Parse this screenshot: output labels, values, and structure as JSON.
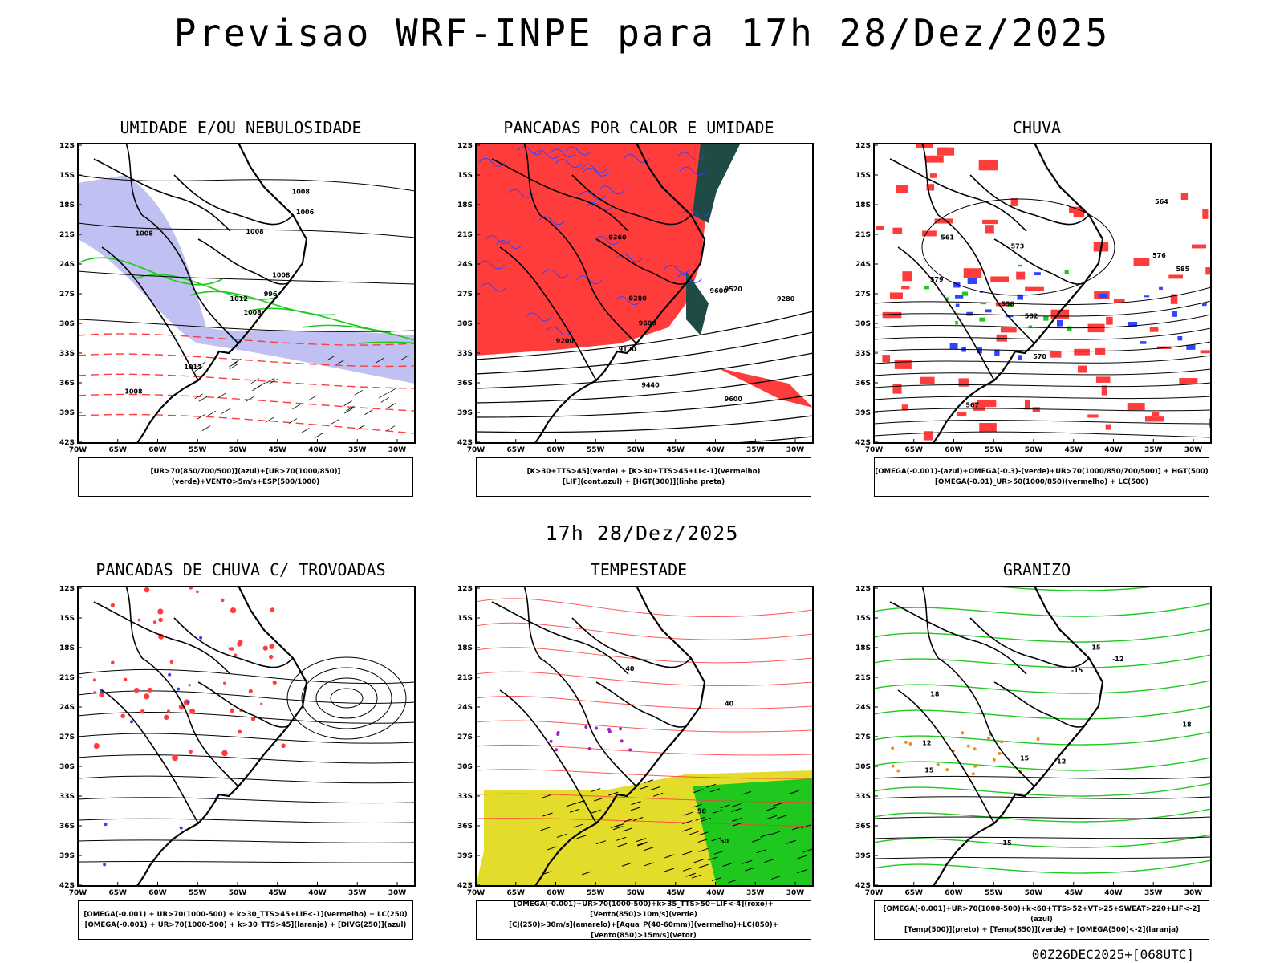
{
  "header": {
    "title": "Previsao WRF-INPE  para 17h 28/Dez/2025"
  },
  "middle": {
    "title": "17h 28/Dez/2025"
  },
  "footer": {
    "run_label": "00Z26DEC2025+[068UTC]"
  },
  "axes": {
    "lat_labels": [
      "12S",
      "15S",
      "18S",
      "21S",
      "24S",
      "27S",
      "30S",
      "33S",
      "36S",
      "39S",
      "42S"
    ],
    "lon_labels": [
      "70W",
      "65W",
      "60W",
      "55W",
      "50W",
      "45W",
      "40W",
      "35W",
      "30W"
    ]
  },
  "colors": {
    "frame": "#000000",
    "rh_blue": "#b9b9f2",
    "green": "#1ec81e",
    "red": "#ff3c3c",
    "dark_teal": "#1f4a46",
    "blue": "#3044ff",
    "yellow": "#e3dc2a",
    "orange": "#f08c1c",
    "purple": "#a020c8"
  },
  "panels": [
    {
      "id": "umidade",
      "title": "UMIDADE E/OU NEBULOSIDADE",
      "legend": [
        "[UR>70(850/700/500)](azul)+[UR>70(1000/850)](verde)+VENTO>5m/s+ESP(500/1000)"
      ],
      "contour_labels": [
        "1008",
        "1008",
        "1012",
        "1008",
        "1008",
        "1012",
        "1008",
        "1008",
        "1006",
        "996"
      ]
    },
    {
      "id": "pancadas_calor",
      "title": "PANCADAS POR CALOR E UMIDADE",
      "legend": [
        "[K>30+TTS>45](verde) + [K>30+TTS>45+LI<-1](vermelho)",
        "[LIF](cont.azul) + [HGT(300)](linha preta)"
      ],
      "contour_labels": [
        "9600",
        "9600",
        "9520",
        "9600",
        "9440",
        "9360",
        "9280",
        "9200",
        "9120",
        "9280"
      ]
    },
    {
      "id": "chuva",
      "title": "CHUVA",
      "legend": [
        "[OMEGA(-0.001)-(azul)+OMEGA(-0.3)-(verde)+UR>70(1000/850/700/500)] + HGT(500)",
        "[OMEGA(-0.01)_UR>50(1000/850)(vermelho) + LC(500)"
      ],
      "contour_labels": [
        "585",
        "582",
        "579",
        "576",
        "573",
        "570",
        "567",
        "564",
        "561",
        "558"
      ]
    },
    {
      "id": "trovoadas",
      "title": "PANCADAS DE CHUVA C/ TROVOADAS",
      "legend": [
        "[OMEGA(-0.001) + UR>70(1000-500) + k>30_TTS>45+LIF<-1](vermelho) + LC(250)",
        "[OMEGA(-0.001) + UR>70(1000-500) + k>30_TTS>45](laranja) + [DIVG(250)](azul)"
      ],
      "contour_labels": []
    },
    {
      "id": "tempestade",
      "title": "TEMPESTADE",
      "legend": [
        "[OMEGA(-0.001)+UR>70(1000-500)+k>35_TTS>50+LIF<-4](roxo)+[Vento(850)>10m/s](verde)",
        "[CJ(250)>30m/s](amarelo)+[Agua_P(40-60mm)](vermelho)+LC(850)+[Vento(850)>15m/s](vetor)"
      ],
      "contour_labels": [
        "40",
        "50",
        "40",
        "50"
      ]
    },
    {
      "id": "granizo",
      "title": "GRANIZO",
      "legend": [
        "[OMEGA(-0.001)+UR>70(1000-500)+k<60+TTS>52+VT>25+SWEAT>220+LIF<-2](azul)",
        "[Temp(500)](preto) + [Temp(850)](verde) + [OMEGA(500)<-2](laranja)"
      ],
      "contour_labels": [
        "15",
        "15",
        "18",
        "12",
        "15",
        "-12",
        "-15",
        "-18",
        "15",
        "12"
      ]
    }
  ]
}
